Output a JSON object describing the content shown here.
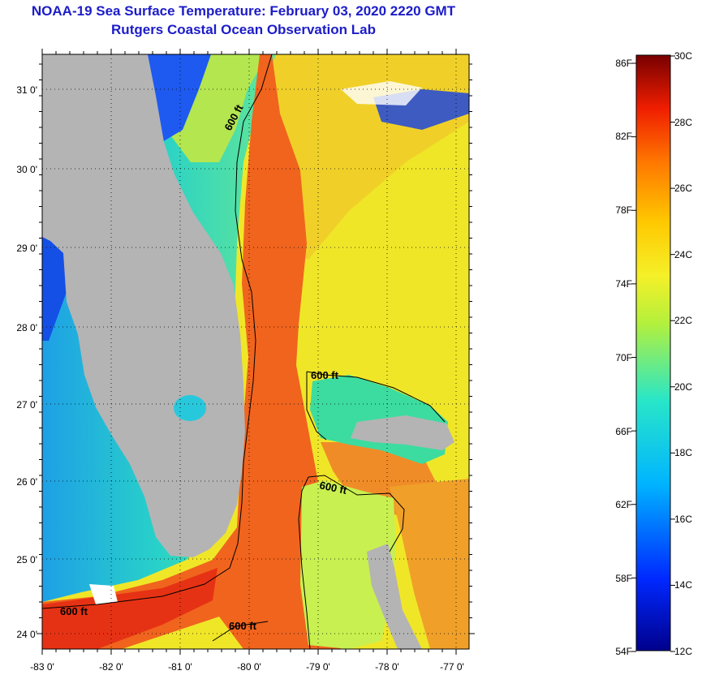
{
  "header": {
    "title": "NOAA-19 Sea Surface Temperature:  February 03, 2020 2220 GMT",
    "subtitle": "Rutgers Coastal Ocean Observation Lab"
  },
  "map": {
    "lon_labels": [
      "-83 0'",
      "-82 0'",
      "-81 0'",
      "-80 0'",
      "-79 0'",
      "-78 0'",
      "-77 0'"
    ],
    "lat_labels": [
      "31 0'",
      "30 0'",
      "29 0'",
      "28 0'",
      "27 0'",
      "26 0'",
      "25 0'",
      "24 0'"
    ],
    "contour_labels": [
      "600 ft",
      "600 ft",
      "600 ft",
      "600 ft",
      "600 ft"
    ],
    "colors": {
      "land": "#b4b4b4",
      "gulf_stream": "#f0641e",
      "shelf": "#28d2c8",
      "nearshore": "#0a3cdc",
      "offshore": "#f0e628"
    }
  },
  "colorbar": {
    "fahrenheit_labels": [
      "86F",
      "82F",
      "78F",
      "74F",
      "70F",
      "66F",
      "62F",
      "58F",
      "54F"
    ],
    "celsius_labels": [
      "30C",
      "28C",
      "26C",
      "24C",
      "22C",
      "20C",
      "18C",
      "16C",
      "14C",
      "12C"
    ]
  }
}
